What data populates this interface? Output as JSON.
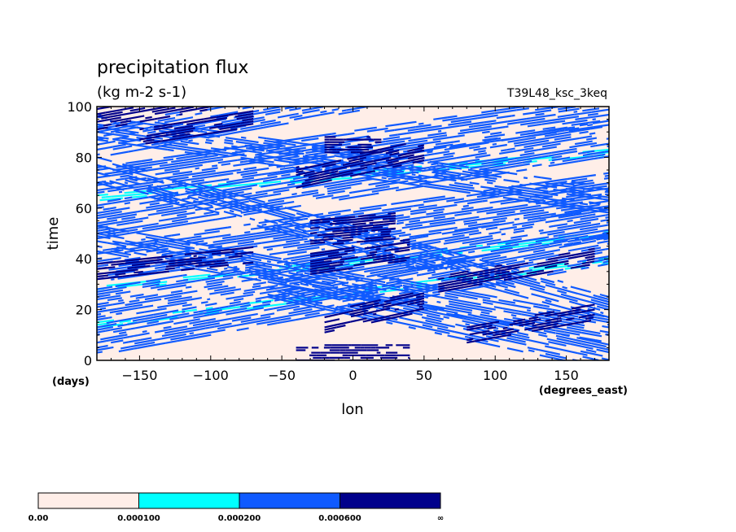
{
  "chart_data": {
    "type": "heatmap",
    "title": "precipitation flux",
    "units": "(kg m-2 s-1)",
    "run_label": "T39L48_ksc_3keq",
    "xlabel": "lon",
    "xunits": "(degrees_east)",
    "ylabel": "time",
    "yunits": "(days)",
    "xlim": [
      -180,
      180
    ],
    "ylim": [
      0,
      100
    ],
    "x_ticks": [
      -150,
      -100,
      -50,
      0,
      50,
      100,
      150
    ],
    "x_tick_labels": [
      "−150",
      "−100",
      "−50",
      "0",
      "50",
      "100",
      "150"
    ],
    "y_ticks": [
      0,
      20,
      40,
      60,
      80,
      100
    ],
    "y_tick_labels": [
      "0",
      "20",
      "40",
      "60",
      "80",
      "100"
    ],
    "levels": [
      0.0,
      0.0001,
      0.0002,
      0.0006
    ],
    "level_labels": [
      "0.00",
      "0.000100",
      "0.000200",
      "0.000600",
      "∞"
    ],
    "colors": [
      "#ffeee8",
      "#00ffff",
      "#0f5aff",
      "#00008b"
    ],
    "background_class": 0,
    "bands": [
      {
        "class": 3,
        "lon_start": -180,
        "time_start": 95,
        "slope": 0.1,
        "width": 4,
        "length": 140
      },
      {
        "class": 3,
        "lon_start": -150,
        "time_start": 88,
        "slope": 0.09,
        "width": 3,
        "length": 80
      },
      {
        "class": 3,
        "lon_start": -20,
        "time_start": 85,
        "slope": 0.0,
        "width": 3,
        "length": 40
      },
      {
        "class": 3,
        "lon_start": -40,
        "time_start": 72,
        "slope": 0.12,
        "width": 4,
        "length": 90
      },
      {
        "class": 3,
        "lon_start": -30,
        "time_start": 50,
        "slope": 0.05,
        "width": 5,
        "length": 60
      },
      {
        "class": 3,
        "lon_start": -30,
        "time_start": 38,
        "slope": 0.08,
        "width": 4,
        "length": 70
      },
      {
        "class": 3,
        "lon_start": -180,
        "time_start": 35,
        "slope": 0.06,
        "width": 3,
        "length": 110
      },
      {
        "class": 3,
        "lon_start": 60,
        "time_start": 30,
        "slope": 0.1,
        "width": 3,
        "length": 110
      },
      {
        "class": 3,
        "lon_start": -20,
        "time_start": 15,
        "slope": 0.12,
        "width": 4,
        "length": 70
      },
      {
        "class": 3,
        "lon_start": -40,
        "time_start": 3,
        "slope": 0.0,
        "width": 3,
        "length": 80
      },
      {
        "class": 3,
        "lon_start": 80,
        "time_start": 10,
        "slope": 0.1,
        "width": 3,
        "length": 90
      },
      {
        "class": 2,
        "lon_start": -180,
        "time_start": 86,
        "slope": 0.1,
        "width": 6,
        "length": 360
      },
      {
        "class": 2,
        "lon_start": -180,
        "time_start": 70,
        "slope": 0.08,
        "width": 6,
        "length": 360
      },
      {
        "class": 2,
        "lon_start": -180,
        "time_start": 55,
        "slope": 0.09,
        "width": 7,
        "length": 360
      },
      {
        "class": 2,
        "lon_start": -180,
        "time_start": 38,
        "slope": 0.08,
        "width": 7,
        "length": 360
      },
      {
        "class": 2,
        "lon_start": -180,
        "time_start": 22,
        "slope": 0.09,
        "width": 6,
        "length": 360
      },
      {
        "class": 2,
        "lon_start": -180,
        "time_start": 8,
        "slope": 0.1,
        "width": 6,
        "length": 360
      },
      {
        "class": 2,
        "lon_start": -180,
        "time_start": 92,
        "slope": -0.08,
        "width": 5,
        "length": 360
      },
      {
        "class": 2,
        "lon_start": -180,
        "time_start": 75,
        "slope": -0.15,
        "width": 5,
        "length": 360
      },
      {
        "class": 2,
        "lon_start": -180,
        "time_start": 48,
        "slope": -0.1,
        "width": 5,
        "length": 360
      },
      {
        "class": 2,
        "lon_start": -60,
        "time_start": 30,
        "slope": -0.12,
        "width": 5,
        "length": 240
      },
      {
        "class": 1,
        "lon_start": -180,
        "time_start": 64,
        "slope": 0.05,
        "width": 1,
        "length": 360
      },
      {
        "class": 1,
        "lon_start": -180,
        "time_start": 28,
        "slope": 0.06,
        "width": 1,
        "length": 360
      },
      {
        "class": 1,
        "lon_start": -180,
        "time_start": 14,
        "slope": 0.07,
        "width": 1,
        "length": 360
      }
    ]
  }
}
